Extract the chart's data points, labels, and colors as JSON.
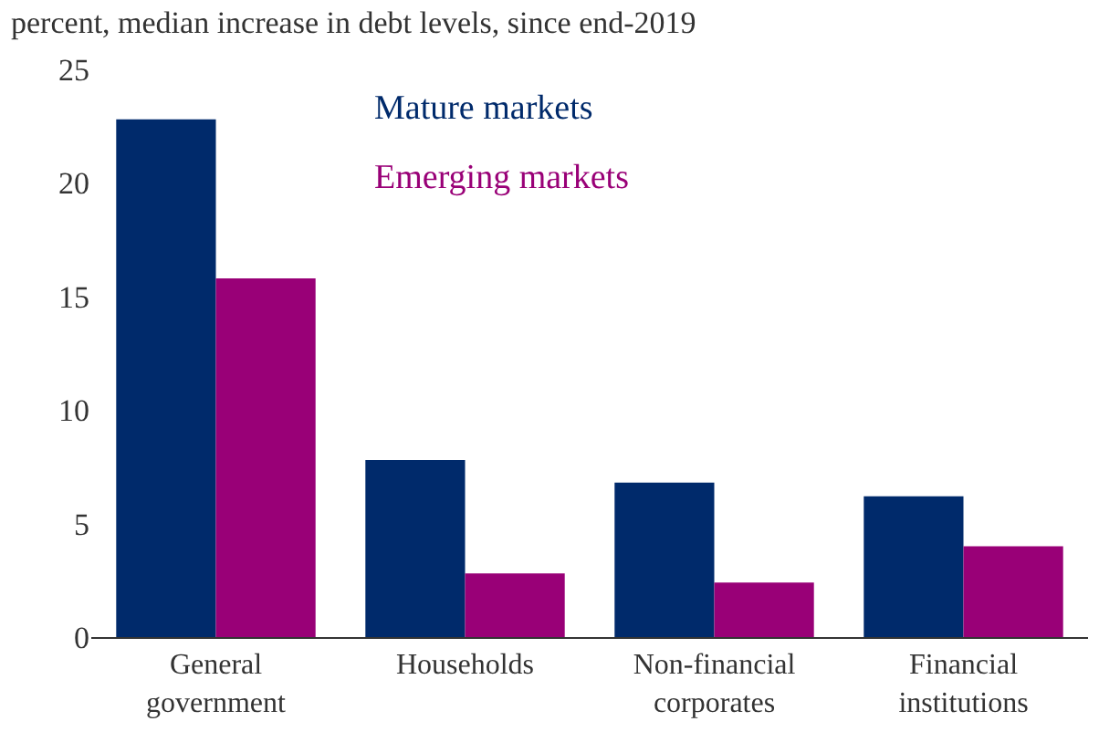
{
  "chart_data": {
    "type": "bar",
    "title": "percent, median increase in debt levels, since end-2019",
    "categories": [
      "General government",
      "Households",
      "Non-financial corporates",
      "Financial institutions"
    ],
    "series": [
      {
        "name": "Mature markets",
        "color": "#002a6b",
        "values": [
          22.8,
          7.8,
          6.8,
          6.2
        ]
      },
      {
        "name": "Emerging markets",
        "color": "#990077",
        "values": [
          15.8,
          2.8,
          2.4,
          4.0
        ]
      }
    ],
    "ylim": [
      0,
      25
    ],
    "yticks": [
      0,
      5,
      10,
      15,
      20,
      25
    ],
    "grid": false,
    "legend": "top"
  }
}
